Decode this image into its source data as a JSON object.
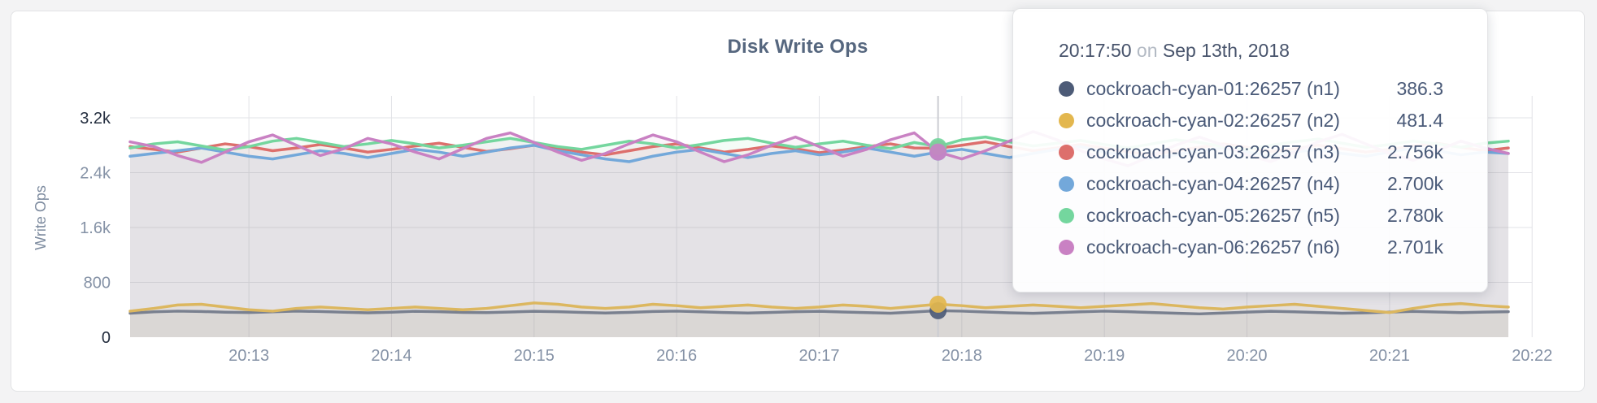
{
  "page": {
    "background": "#f3f3f4"
  },
  "panel": {
    "background": "#ffffff",
    "border_color": "#e2e3e5"
  },
  "chart": {
    "title": "Disk Write Ops",
    "title_color": "#56677f",
    "grid_color": "#e2e3e7",
    "tick_color": "#8592a6",
    "tick_emphasis_color": "#242e3f",
    "axis_label_color": "#7d8b9f",
    "hover_line_color": "#cbccd2",
    "y_axis": {
      "label": "Write Ops",
      "ticks": [
        {
          "label": "0",
          "value": 0,
          "emphasis": true
        },
        {
          "label": "800",
          "value": 800,
          "emphasis": false
        },
        {
          "label": "1.6k",
          "value": 1600,
          "emphasis": false
        },
        {
          "label": "2.4k",
          "value": 2400,
          "emphasis": false
        },
        {
          "label": "3.2k",
          "value": 3200,
          "emphasis": true
        }
      ]
    },
    "x_axis": {
      "ticks": [
        "20:13",
        "20:14",
        "20:15",
        "20:16",
        "20:17",
        "20:18",
        "20:19",
        "20:20",
        "20:21",
        "20:22"
      ]
    }
  },
  "tooltip": {
    "time": "20:17:50",
    "connector": "on",
    "date": "Sep 13th, 2018",
    "rows": [
      {
        "name": "cockroach-cyan-01:26257 (n1)",
        "value": "386.3",
        "dot_color": "#4d5b77"
      },
      {
        "name": "cockroach-cyan-02:26257 (n2)",
        "value": "481.4",
        "dot_color": "#e3b74e"
      },
      {
        "name": "cockroach-cyan-03:26257 (n3)",
        "value": "2.756k",
        "dot_color": "#dd6f6c"
      },
      {
        "name": "cockroach-cyan-04:26257 (n4)",
        "value": "2.700k",
        "dot_color": "#73a8da"
      },
      {
        "name": "cockroach-cyan-05:26257 (n5)",
        "value": "2.780k",
        "dot_color": "#74d69e"
      },
      {
        "name": "cockroach-cyan-06:26257 (n6)",
        "value": "2.701k",
        "dot_color": "#c981c3"
      }
    ]
  },
  "chart_data": {
    "type": "line",
    "title": "Disk Write Ops",
    "ylabel": "Write Ops",
    "ylim": [
      0,
      3200
    ],
    "grid": true,
    "legend_position": "tooltip-only",
    "x_start": "20:12:10",
    "x_end": "20:21:50",
    "x_step_seconds": 10,
    "x_tick_labels": [
      "20:13",
      "20:14",
      "20:15",
      "20:16",
      "20:17",
      "20:18",
      "20:19",
      "20:20",
      "20:21",
      "20:22"
    ],
    "hover": {
      "index": 34,
      "time": "20:17:50",
      "date": "Sep 13th, 2018"
    },
    "series": [
      {
        "name": "cockroach-cyan-01:26257 (n1)",
        "color": "#79808f",
        "dot_color": "#4d5b77",
        "values": [
          350,
          370,
          380,
          375,
          365,
          360,
          370,
          380,
          375,
          365,
          355,
          365,
          378,
          372,
          362,
          358,
          368,
          378,
          372,
          362,
          352,
          362,
          375,
          380,
          370,
          360,
          352,
          362,
          372,
          378,
          368,
          358,
          350,
          368,
          386.3,
          380,
          368,
          356,
          348,
          358,
          370,
          380,
          372,
          360,
          350,
          340,
          352,
          366,
          378,
          370,
          360,
          350,
          356,
          366,
          376,
          368,
          358,
          366,
          372
        ]
      },
      {
        "name": "cockroach-cyan-02:26257 (n2)",
        "color": "#dcb75f",
        "dot_color": "#e3b74e",
        "values": [
          380,
          420,
          470,
          480,
          440,
          400,
          380,
          420,
          440,
          420,
          400,
          420,
          440,
          420,
          400,
          420,
          460,
          500,
          480,
          440,
          420,
          440,
          480,
          460,
          430,
          450,
          470,
          440,
          420,
          440,
          470,
          450,
          420,
          450,
          481.4,
          460,
          430,
          450,
          470,
          450,
          430,
          450,
          470,
          490,
          460,
          430,
          410,
          440,
          460,
          480,
          450,
          420,
          390,
          360,
          420,
          470,
          490,
          460,
          440
        ]
      },
      {
        "name": "cockroach-cyan-03:26257 (n3)",
        "color": "#dd6f6c",
        "dot_color": "#dd6f6c",
        "values": [
          2780,
          2740,
          2700,
          2760,
          2820,
          2780,
          2720,
          2760,
          2810,
          2760,
          2700,
          2740,
          2790,
          2830,
          2770,
          2710,
          2750,
          2800,
          2760,
          2700,
          2660,
          2720,
          2780,
          2820,
          2760,
          2700,
          2740,
          2790,
          2750,
          2690,
          2730,
          2780,
          2820,
          2760,
          2756,
          2800,
          2850,
          2780,
          2720,
          2760,
          2810,
          2760,
          2700,
          2660,
          2720,
          2770,
          2820,
          2770,
          2710,
          2750,
          2800,
          2750,
          2700,
          2740,
          2790,
          2830,
          2770,
          2720,
          2760
        ]
      },
      {
        "name": "cockroach-cyan-04:26257 (n4)",
        "color": "#73a8da",
        "dot_color": "#73a8da",
        "values": [
          2640,
          2680,
          2720,
          2760,
          2700,
          2640,
          2600,
          2660,
          2720,
          2680,
          2620,
          2680,
          2740,
          2700,
          2640,
          2700,
          2760,
          2800,
          2720,
          2660,
          2600,
          2560,
          2640,
          2700,
          2740,
          2680,
          2620,
          2680,
          2720,
          2660,
          2700,
          2760,
          2700,
          2640,
          2700,
          2740,
          2680,
          2620,
          2680,
          2740,
          2780,
          2700,
          2640,
          2600,
          2660,
          2720,
          2760,
          2700,
          2640,
          2700,
          2740,
          2680,
          2640,
          2700,
          2760,
          2720,
          2660,
          2700,
          2680
        ]
      },
      {
        "name": "cockroach-cyan-05:26257 (n5)",
        "color": "#74d69e",
        "dot_color": "#74d69e",
        "values": [
          2760,
          2820,
          2850,
          2790,
          2730,
          2780,
          2860,
          2900,
          2840,
          2780,
          2820,
          2870,
          2820,
          2760,
          2800,
          2850,
          2900,
          2840,
          2780,
          2740,
          2800,
          2860,
          2820,
          2760,
          2810,
          2870,
          2900,
          2830,
          2770,
          2820,
          2860,
          2800,
          2750,
          2840,
          2780,
          2880,
          2920,
          2850,
          2790,
          2830,
          2870,
          2810,
          2760,
          2820,
          2880,
          2840,
          2780,
          2740,
          2800,
          2850,
          2890,
          2830,
          2770,
          2810,
          2860,
          2820,
          2770,
          2830,
          2860
        ]
      },
      {
        "name": "cockroach-cyan-06:26257 (n6)",
        "color": "#c981c3",
        "dot_color": "#c981c3",
        "values": [
          2850,
          2780,
          2650,
          2550,
          2700,
          2850,
          2950,
          2800,
          2650,
          2750,
          2900,
          2820,
          2700,
          2600,
          2750,
          2900,
          2980,
          2840,
          2700,
          2580,
          2680,
          2820,
          2950,
          2850,
          2700,
          2560,
          2660,
          2800,
          2920,
          2780,
          2640,
          2740,
          2880,
          2980,
          2701,
          2600,
          2720,
          2860,
          3000,
          2880,
          2720,
          2600,
          2500,
          2650,
          2800,
          2920,
          2800,
          2660,
          2560,
          2700,
          2850,
          2960,
          2820,
          2680,
          2580,
          2720,
          2860,
          2760,
          2680
        ]
      }
    ]
  }
}
